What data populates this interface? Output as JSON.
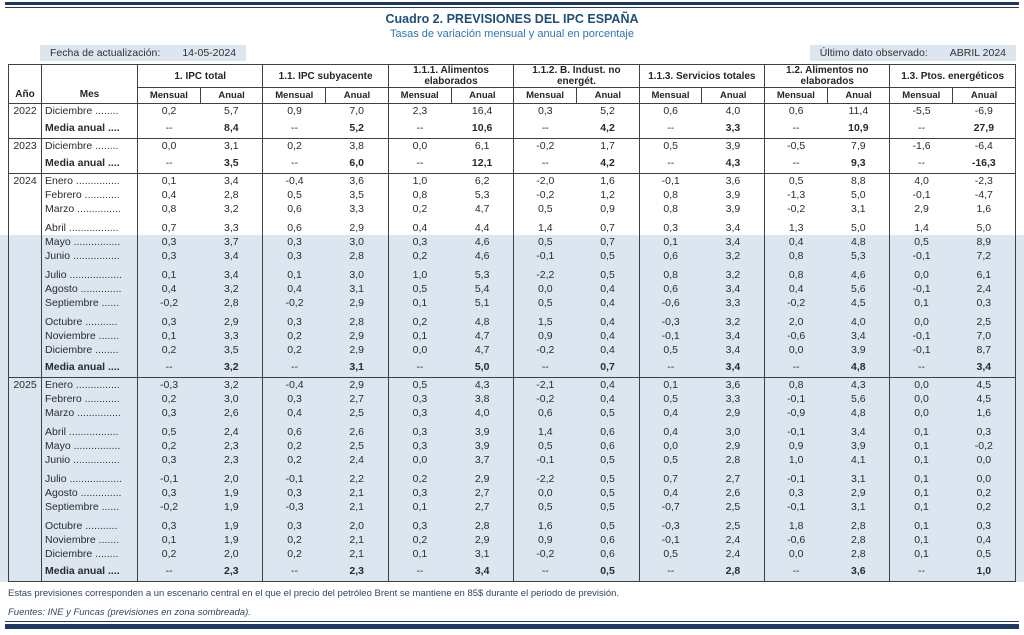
{
  "title": "Cuadro 2. PREVISIONES DEL IPC ESPAÑA",
  "subtitle": "Tasas de variación mensual y anual en porcentaje",
  "info": {
    "update_label": "Fecha de actualización:",
    "update_value": "14-05-2024",
    "observed_label": "Último dato observado:",
    "observed_value": "ABRIL 2024"
  },
  "colors": {
    "accent_navy": "#1F3864",
    "title_blue": "#1F4E79",
    "subtitle_blue": "#2E74B5",
    "shade_blue": "#DCE6F1",
    "border_dark": "#404040"
  },
  "table": {
    "corner": [
      "Año",
      "Mes"
    ],
    "groups": [
      "1. IPC total",
      "1.1. IPC subyacente",
      "1.1.1. Alimentos elaborados",
      "1.1.2. B. Indust. no energét.",
      "1.1.3. Servicios totales",
      "1.2. Alimentos no elaborados",
      "1.3. Ptos. energéticos"
    ],
    "sub": [
      "Mensual",
      "Anual"
    ],
    "blocks": [
      {
        "year": "2022",
        "rows": [
          {
            "m": "Diciembre ........",
            "v": [
              "0,2",
              "5,7",
              "0,9",
              "7,0",
              "2,3",
              "16,4",
              "0,3",
              "5,2",
              "0,6",
              "4,0",
              "0,6",
              "11,4",
              "-5,5",
              "-6,9"
            ]
          },
          {
            "m": "Media anual ....",
            "avg": true,
            "v": [
              "--",
              "8,4",
              "--",
              "5,2",
              "--",
              "10,6",
              "--",
              "4,2",
              "--",
              "3,3",
              "--",
              "10,9",
              "--",
              "27,9"
            ]
          }
        ]
      },
      {
        "year": "2023",
        "rows": [
          {
            "m": "Diciembre ........",
            "v": [
              "0,0",
              "3,1",
              "0,2",
              "3,8",
              "0,0",
              "6,1",
              "-0,2",
              "1,7",
              "0,5",
              "3,9",
              "-0,5",
              "7,9",
              "-1,6",
              "-6,4"
            ]
          },
          {
            "m": "Media anual ....",
            "avg": true,
            "v": [
              "--",
              "3,5",
              "--",
              "6,0",
              "--",
              "12,1",
              "--",
              "4,2",
              "--",
              "4,3",
              "--",
              "9,3",
              "--",
              "-16,3"
            ]
          }
        ]
      },
      {
        "year": "2024",
        "rows": [
          {
            "m": "Enero ...............",
            "v": [
              "0,1",
              "3,4",
              "-0,4",
              "3,6",
              "1,0",
              "6,2",
              "-2,0",
              "1,6",
              "-0,1",
              "3,6",
              "0,5",
              "8,8",
              "4,0",
              "-2,3"
            ]
          },
          {
            "m": "Febrero ............",
            "v": [
              "0,4",
              "2,8",
              "0,5",
              "3,5",
              "0,8",
              "5,3",
              "-0,2",
              "1,2",
              "0,8",
              "3,9",
              "-1,3",
              "5,0",
              "-0,1",
              "-4,7"
            ]
          },
          {
            "m": "Marzo ...............",
            "v": [
              "0,8",
              "3,2",
              "0,6",
              "3,3",
              "0,2",
              "4,7",
              "0,5",
              "0,9",
              "0,8",
              "3,9",
              "-0,2",
              "3,1",
              "2,9",
              "1,6"
            ]
          },
          {
            "m": "Abril .................",
            "gap": true,
            "v": [
              "0,7",
              "3,3",
              "0,6",
              "2,9",
              "0,4",
              "4,4",
              "1,4",
              "0,7",
              "0,3",
              "3,4",
              "1,3",
              "5,0",
              "1,4",
              "5,0"
            ]
          },
          {
            "m": "Mayo ................",
            "shade": true,
            "v": [
              "0,3",
              "3,7",
              "0,3",
              "3,0",
              "0,3",
              "4,6",
              "0,5",
              "0,7",
              "0,1",
              "3,4",
              "0,4",
              "4,8",
              "0,5",
              "8,9"
            ]
          },
          {
            "m": "Junio ................",
            "shade": true,
            "v": [
              "0,3",
              "3,4",
              "0,3",
              "2,8",
              "0,2",
              "4,6",
              "-0,1",
              "0,5",
              "0,6",
              "3,2",
              "0,8",
              "5,3",
              "-0,1",
              "7,2"
            ]
          },
          {
            "m": "Julio ..................",
            "gap": true,
            "shade": true,
            "v": [
              "0,1",
              "3,4",
              "0,1",
              "3,0",
              "1,0",
              "5,3",
              "-2,2",
              "0,5",
              "0,8",
              "3,2",
              "0,8",
              "4,6",
              "0,0",
              "6,1"
            ]
          },
          {
            "m": "Agosto ..............",
            "shade": true,
            "v": [
              "0,4",
              "3,2",
              "0,4",
              "3,1",
              "0,5",
              "5,4",
              "0,0",
              "0,4",
              "0,6",
              "3,4",
              "0,4",
              "5,6",
              "-0,1",
              "2,4"
            ]
          },
          {
            "m": "Septiembre ......",
            "shade": true,
            "v": [
              "-0,2",
              "2,8",
              "-0,2",
              "2,9",
              "0,1",
              "5,1",
              "0,5",
              "0,4",
              "-0,6",
              "3,3",
              "-0,2",
              "4,5",
              "0,1",
              "0,3"
            ]
          },
          {
            "m": "Octubre ...........",
            "gap": true,
            "shade": true,
            "v": [
              "0,3",
              "2,9",
              "0,3",
              "2,8",
              "0,2",
              "4,8",
              "1,5",
              "0,4",
              "-0,3",
              "3,2",
              "2,0",
              "4,0",
              "0,0",
              "2,5"
            ]
          },
          {
            "m": "Noviembre .......",
            "shade": true,
            "v": [
              "0,1",
              "3,3",
              "0,2",
              "2,9",
              "0,1",
              "4,7",
              "0,9",
              "0,4",
              "-0,1",
              "3,4",
              "-0,6",
              "3,4",
              "-0,1",
              "7,0"
            ]
          },
          {
            "m": "Diciembre ........",
            "shade": true,
            "v": [
              "0,2",
              "3,5",
              "0,2",
              "2,9",
              "0,0",
              "4,7",
              "-0,2",
              "0,4",
              "0,5",
              "3,4",
              "0,0",
              "3,9",
              "-0,1",
              "8,7"
            ]
          },
          {
            "m": "Media anual ....",
            "gap": true,
            "shade": true,
            "avg": true,
            "v": [
              "--",
              "3,2",
              "--",
              "3,1",
              "--",
              "5,0",
              "--",
              "0,7",
              "--",
              "3,4",
              "--",
              "4,8",
              "--",
              "3,4"
            ]
          }
        ]
      },
      {
        "year": "2025",
        "rows": [
          {
            "m": "Enero ...............",
            "shade": true,
            "v": [
              "-0,3",
              "3,2",
              "-0,4",
              "2,9",
              "0,5",
              "4,3",
              "-2,1",
              "0,4",
              "0,1",
              "3,6",
              "0,8",
              "4,3",
              "0,0",
              "4,5"
            ]
          },
          {
            "m": "Febrero ............",
            "shade": true,
            "v": [
              "0,2",
              "3,0",
              "0,3",
              "2,7",
              "0,3",
              "3,8",
              "-0,2",
              "0,4",
              "0,5",
              "3,3",
              "-0,1",
              "5,6",
              "0,0",
              "4,5"
            ]
          },
          {
            "m": "Marzo ...............",
            "shade": true,
            "v": [
              "0,3",
              "2,6",
              "0,4",
              "2,5",
              "0,3",
              "4,0",
              "0,6",
              "0,5",
              "0,4",
              "2,9",
              "-0,9",
              "4,8",
              "0,0",
              "1,6"
            ]
          },
          {
            "m": "Abril .................",
            "gap": true,
            "shade": true,
            "v": [
              "0,5",
              "2,4",
              "0,6",
              "2,6",
              "0,3",
              "3,9",
              "1,4",
              "0,6",
              "0,4",
              "3,0",
              "-0,1",
              "3,4",
              "0,1",
              "0,3"
            ]
          },
          {
            "m": "Mayo ................",
            "shade": true,
            "v": [
              "0,2",
              "2,3",
              "0,2",
              "2,5",
              "0,3",
              "3,9",
              "0,5",
              "0,6",
              "0,0",
              "2,9",
              "0,9",
              "3,9",
              "0,1",
              "-0,2"
            ]
          },
          {
            "m": "Junio ................",
            "shade": true,
            "v": [
              "0,3",
              "2,3",
              "0,2",
              "2,4",
              "0,0",
              "3,7",
              "-0,1",
              "0,5",
              "0,5",
              "2,8",
              "1,0",
              "4,1",
              "0,1",
              "0,0"
            ]
          },
          {
            "m": "Julio ..................",
            "gap": true,
            "shade": true,
            "v": [
              "-0,1",
              "2,0",
              "-0,1",
              "2,2",
              "0,2",
              "2,9",
              "-2,2",
              "0,5",
              "0,7",
              "2,7",
              "-0,1",
              "3,1",
              "0,1",
              "0,0"
            ]
          },
          {
            "m": "Agosto ..............",
            "shade": true,
            "v": [
              "0,3",
              "1,9",
              "0,3",
              "2,1",
              "0,3",
              "2,7",
              "0,0",
              "0,5",
              "0,4",
              "2,6",
              "0,3",
              "2,9",
              "0,1",
              "0,2"
            ]
          },
          {
            "m": "Septiembre ......",
            "shade": true,
            "v": [
              "-0,2",
              "1,9",
              "-0,3",
              "2,1",
              "0,1",
              "2,7",
              "0,5",
              "0,5",
              "-0,7",
              "2,5",
              "-0,1",
              "3,1",
              "0,1",
              "0,2"
            ]
          },
          {
            "m": "Octubre ...........",
            "gap": true,
            "shade": true,
            "v": [
              "0,3",
              "1,9",
              "0,3",
              "2,0",
              "0,3",
              "2,8",
              "1,6",
              "0,5",
              "-0,3",
              "2,5",
              "1,8",
              "2,8",
              "0,1",
              "0,3"
            ]
          },
          {
            "m": "Noviembre .......",
            "shade": true,
            "v": [
              "0,1",
              "1,9",
              "0,2",
              "2,1",
              "0,2",
              "2,9",
              "0,9",
              "0,6",
              "-0,1",
              "2,4",
              "-0,6",
              "2,8",
              "0,1",
              "0,4"
            ]
          },
          {
            "m": "Diciembre ........",
            "shade": true,
            "v": [
              "0,2",
              "2,0",
              "0,2",
              "2,1",
              "0,1",
              "3,1",
              "-0,2",
              "0,6",
              "0,5",
              "2,4",
              "0,0",
              "2,8",
              "0,1",
              "0,5"
            ]
          },
          {
            "m": "Media anual ....",
            "gap": true,
            "shade": true,
            "avg": true,
            "v": [
              "--",
              "2,3",
              "--",
              "2,3",
              "--",
              "3,4",
              "--",
              "0,5",
              "--",
              "2,8",
              "--",
              "3,6",
              "--",
              "1,0"
            ]
          }
        ]
      }
    ]
  },
  "footer": {
    "note": "Estas previsiones corresponden a un escenario central en el que el precio del petróleo Brent se mantiene en 85$ durante el periodo de previsión.",
    "sources": "Fuentes: INE y Funcas (previsiones en zona sombreada)."
  }
}
